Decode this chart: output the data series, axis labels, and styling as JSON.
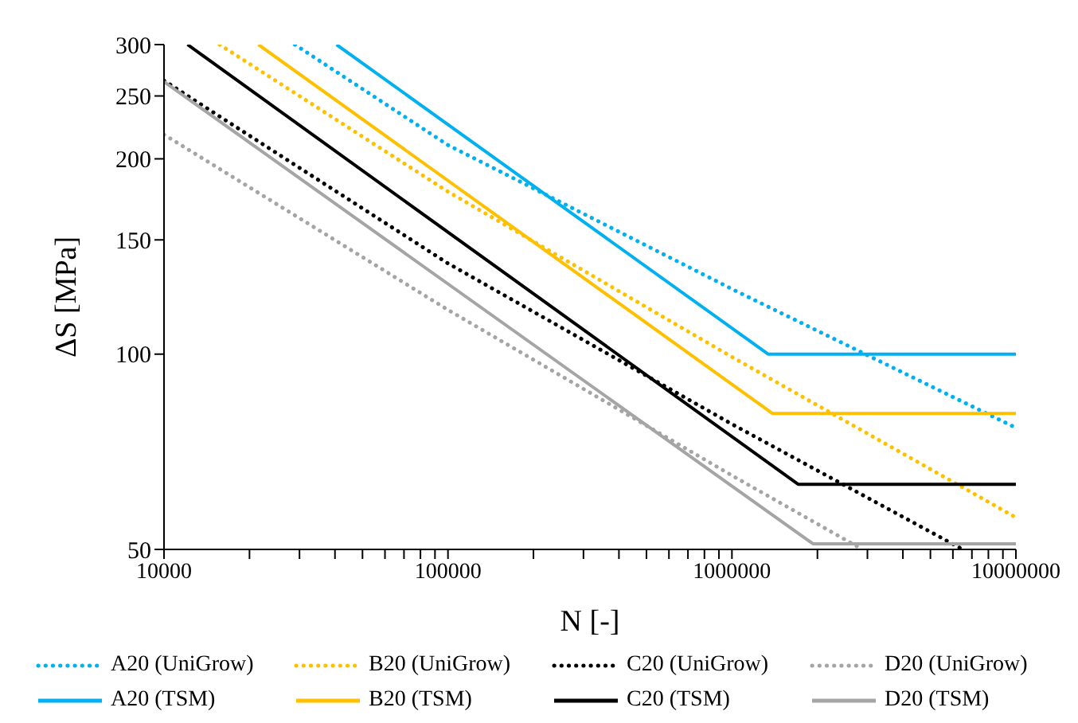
{
  "chart_data": {
    "type": "line",
    "xlabel": "N [-]",
    "ylabel": "ΔS [MPa]",
    "log": "xy",
    "legend": "bottom",
    "xlim": [
      10000,
      10000000
    ],
    "xticks": [
      10000,
      {
        "value": 20000,
        "label": null
      },
      {
        "value": 30000,
        "label": null
      },
      {
        "value": 40000,
        "label": null
      },
      {
        "value": 50000,
        "label": null
      },
      {
        "value": 60000,
        "label": null
      },
      {
        "value": 70000,
        "label": null
      },
      {
        "value": 80000,
        "label": null
      },
      {
        "value": 90000,
        "label": null
      },
      100000,
      {
        "value": 200000,
        "label": null
      },
      {
        "value": 300000,
        "label": null
      },
      {
        "value": 400000,
        "label": null
      },
      {
        "value": 500000,
        "label": null
      },
      {
        "value": 600000,
        "label": null
      },
      {
        "value": 700000,
        "label": null
      },
      {
        "value": 800000,
        "label": null
      },
      {
        "value": 900000,
        "label": null
      },
      1000000,
      {
        "value": 2000000,
        "label": null
      },
      {
        "value": 3000000,
        "label": null
      },
      {
        "value": 4000000,
        "label": null
      },
      {
        "value": 5000000,
        "label": null
      },
      {
        "value": 6000000,
        "label": null
      },
      {
        "value": 7000000,
        "label": null
      },
      {
        "value": 8000000,
        "label": null
      },
      {
        "value": 9000000,
        "label": null
      },
      10000000
    ],
    "ylim": [
      50,
      300
    ],
    "yticks": [
      50,
      100,
      150,
      200,
      250,
      300
    ],
    "series": [
      {
        "name": "A20 (UniGrow)",
        "color": "#00b0f0",
        "line_style": "dotted",
        "x": [
          28900,
          100000,
          1000000,
          10000000
        ],
        "values": [
          300,
          210,
          126,
          77
        ]
      },
      {
        "name": "B20 (UniGrow)",
        "color": "#ffc000",
        "line_style": "dotted",
        "x": [
          15700,
          100000,
          1000000,
          10000000
        ],
        "values": [
          300,
          178,
          99,
          56
        ]
      },
      {
        "name": "C20 (UniGrow)",
        "color": "#000000",
        "line_style": "dotted",
        "x": [
          10000,
          100000,
          1000000,
          6500000
        ],
        "values": [
          264,
          138,
          78,
          50
        ]
      },
      {
        "name": "D20 (UniGrow)",
        "color": "#a5a5a5",
        "line_style": "dotted",
        "x": [
          10000,
          100000,
          1000000,
          2880000
        ],
        "values": [
          218,
          117,
          65,
          50
        ]
      },
      {
        "name": "A20 (TSM)",
        "color": "#00b0f0",
        "line_style": "solid",
        "x": [
          40500,
          1340000,
          10000000
        ],
        "values": [
          300,
          100,
          100
        ]
      },
      {
        "name": "B20 (TSM)",
        "color": "#ffc000",
        "line_style": "solid",
        "x": [
          21500,
          1390000,
          10000000
        ],
        "values": [
          300,
          81,
          81
        ]
      },
      {
        "name": "C20 (TSM)",
        "color": "#000000",
        "line_style": "solid",
        "x": [
          12100,
          1710000,
          10000000
        ],
        "values": [
          300,
          63,
          63
        ]
      },
      {
        "name": "D20 (TSM)",
        "color": "#a5a5a5",
        "line_style": "solid",
        "x": [
          10000,
          1930000,
          10000000
        ],
        "values": [
          263,
          51,
          51
        ]
      }
    ]
  }
}
